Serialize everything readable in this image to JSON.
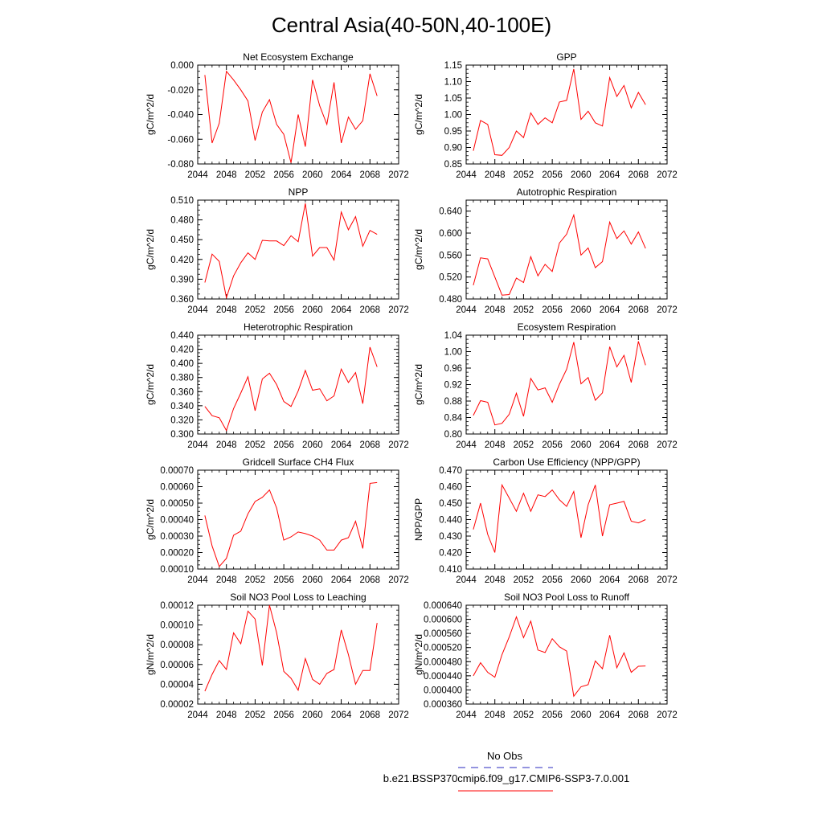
{
  "title": "Central Asia(40-50N,40-100E)",
  "legend": {
    "obs_label": "No Obs",
    "obs_color": "#5555cc",
    "model_label": "b.e21.BSSP370cmip6.f09_g17.CMIP6-SSP3-7.0.001",
    "model_color": "#ff0000"
  },
  "chart_data": [
    {
      "type": "line",
      "title": "Net Ecosystem Exchange",
      "ylabel": "gC/m^2/d",
      "xlim": [
        2044,
        2072
      ],
      "xticks": [
        "2044",
        "2048",
        "2052",
        "2056",
        "2060",
        "2064",
        "2068",
        "2072"
      ],
      "ylim": [
        -0.08,
        0.0
      ],
      "yticks": [
        "-0.080",
        "-0.060",
        "-0.040",
        "-0.020",
        "0.000"
      ],
      "x": [
        2045,
        2046,
        2047,
        2048,
        2049,
        2050,
        2051,
        2052,
        2053,
        2054,
        2055,
        2056,
        2057,
        2058,
        2059,
        2060,
        2061,
        2062,
        2063,
        2064,
        2065,
        2066,
        2067,
        2068,
        2069
      ],
      "y": [
        -0.008,
        -0.063,
        -0.047,
        -0.005,
        -0.012,
        -0.02,
        -0.029,
        -0.061,
        -0.038,
        -0.028,
        -0.048,
        -0.056,
        -0.079,
        -0.04,
        -0.066,
        -0.012,
        -0.033,
        -0.048,
        -0.014,
        -0.063,
        -0.042,
        -0.052,
        -0.045,
        -0.007,
        -0.025
      ]
    },
    {
      "type": "line",
      "title": "GPP",
      "ylabel": "gC/m^2/d",
      "xlim": [
        2044,
        2072
      ],
      "xticks": [
        "2044",
        "2048",
        "2052",
        "2056",
        "2060",
        "2064",
        "2068",
        "2072"
      ],
      "ylim": [
        0.85,
        1.15
      ],
      "yticks": [
        "0.85",
        "0.90",
        "0.95",
        "1.00",
        "1.05",
        "1.10",
        "1.15"
      ],
      "x": [
        2045,
        2046,
        2047,
        2048,
        2049,
        2050,
        2051,
        2052,
        2053,
        2054,
        2055,
        2056,
        2057,
        2058,
        2059,
        2060,
        2061,
        2062,
        2063,
        2064,
        2065,
        2066,
        2067,
        2068,
        2069
      ],
      "y": [
        0.89,
        0.982,
        0.97,
        0.878,
        0.876,
        0.9,
        0.95,
        0.93,
        1.005,
        0.97,
        0.99,
        0.975,
        1.038,
        1.043,
        1.138,
        0.985,
        1.01,
        0.975,
        0.965,
        1.112,
        1.055,
        1.088,
        1.02,
        1.067,
        1.03
      ]
    },
    {
      "type": "line",
      "title": "NPP",
      "ylabel": "gC/m^2/d",
      "xlim": [
        2044,
        2072
      ],
      "xticks": [
        "2044",
        "2048",
        "2052",
        "2056",
        "2060",
        "2064",
        "2068",
        "2072"
      ],
      "ylim": [
        0.36,
        0.51
      ],
      "yticks": [
        "0.360",
        "0.390",
        "0.420",
        "0.450",
        "0.480",
        "0.510"
      ],
      "x": [
        2045,
        2046,
        2047,
        2048,
        2049,
        2050,
        2051,
        2052,
        2053,
        2054,
        2055,
        2056,
        2057,
        2058,
        2059,
        2060,
        2061,
        2062,
        2063,
        2064,
        2065,
        2066,
        2067,
        2068,
        2069
      ],
      "y": [
        0.385,
        0.428,
        0.417,
        0.362,
        0.395,
        0.415,
        0.43,
        0.42,
        0.449,
        0.448,
        0.448,
        0.441,
        0.456,
        0.447,
        0.505,
        0.425,
        0.438,
        0.438,
        0.419,
        0.492,
        0.465,
        0.485,
        0.44,
        0.464,
        0.458
      ]
    },
    {
      "type": "line",
      "title": "Autotrophic Respiration",
      "ylabel": "gC/m^2/d",
      "xlim": [
        2044,
        2072
      ],
      "xticks": [
        "2044",
        "2048",
        "2052",
        "2056",
        "2060",
        "2064",
        "2068",
        "2072"
      ],
      "ylim": [
        0.48,
        0.66
      ],
      "yticks": [
        "0.480",
        "0.520",
        "0.560",
        "0.600",
        "0.640"
      ],
      "x": [
        2045,
        2046,
        2047,
        2048,
        2049,
        2050,
        2051,
        2052,
        2053,
        2054,
        2055,
        2056,
        2057,
        2058,
        2059,
        2060,
        2061,
        2062,
        2063,
        2064,
        2065,
        2066,
        2067,
        2068,
        2069
      ],
      "y": [
        0.505,
        0.555,
        0.553,
        0.52,
        0.487,
        0.488,
        0.518,
        0.51,
        0.557,
        0.522,
        0.543,
        0.53,
        0.582,
        0.598,
        0.633,
        0.56,
        0.573,
        0.537,
        0.548,
        0.62,
        0.59,
        0.604,
        0.58,
        0.602,
        0.572
      ]
    },
    {
      "type": "line",
      "title": "Heterotrophic Respiration",
      "ylabel": "gC/m^2/d",
      "xlim": [
        2044,
        2072
      ],
      "xticks": [
        "2044",
        "2048",
        "2052",
        "2056",
        "2060",
        "2064",
        "2068",
        "2072"
      ],
      "ylim": [
        0.3,
        0.44
      ],
      "yticks": [
        "0.300",
        "0.320",
        "0.340",
        "0.360",
        "0.380",
        "0.400",
        "0.420",
        "0.440"
      ],
      "x": [
        2045,
        2046,
        2047,
        2048,
        2049,
        2050,
        2051,
        2052,
        2053,
        2054,
        2055,
        2056,
        2057,
        2058,
        2059,
        2060,
        2061,
        2062,
        2063,
        2064,
        2065,
        2066,
        2067,
        2068,
        2069
      ],
      "y": [
        0.339,
        0.326,
        0.323,
        0.305,
        0.336,
        0.358,
        0.381,
        0.333,
        0.378,
        0.386,
        0.37,
        0.346,
        0.339,
        0.361,
        0.39,
        0.362,
        0.364,
        0.347,
        0.354,
        0.392,
        0.373,
        0.387,
        0.343,
        0.423,
        0.395
      ]
    },
    {
      "type": "line",
      "title": "Ecosystem Respiration",
      "ylabel": "gC/m^2/d",
      "xlim": [
        2044,
        2072
      ],
      "xticks": [
        "2044",
        "2048",
        "2052",
        "2056",
        "2060",
        "2064",
        "2068",
        "2072"
      ],
      "ylim": [
        0.8,
        1.04
      ],
      "yticks": [
        "0.80",
        "0.84",
        "0.88",
        "0.92",
        "0.96",
        "1.00",
        "1.04"
      ],
      "x": [
        2045,
        2046,
        2047,
        2048,
        2049,
        2050,
        2051,
        2052,
        2053,
        2054,
        2055,
        2056,
        2057,
        2058,
        2059,
        2060,
        2061,
        2062,
        2063,
        2064,
        2065,
        2066,
        2067,
        2068,
        2069
      ],
      "y": [
        0.845,
        0.881,
        0.877,
        0.822,
        0.826,
        0.848,
        0.899,
        0.843,
        0.935,
        0.907,
        0.912,
        0.877,
        0.921,
        0.957,
        1.023,
        0.922,
        0.937,
        0.882,
        0.9,
        1.012,
        0.963,
        0.991,
        0.925,
        1.025,
        0.967
      ]
    },
    {
      "type": "line",
      "title": "Gridcell Surface CH4 Flux",
      "ylabel": "gC/m^2/d",
      "xlim": [
        2044,
        2072
      ],
      "xticks": [
        "2044",
        "2048",
        "2052",
        "2056",
        "2060",
        "2064",
        "2068",
        "2072"
      ],
      "ylim": [
        0.0001,
        0.0007
      ],
      "yticks": [
        "0.00010",
        "0.00020",
        "0.00030",
        "0.00040",
        "0.00050",
        "0.00060",
        "0.00070"
      ],
      "x": [
        2045,
        2046,
        2047,
        2048,
        2049,
        2050,
        2051,
        2052,
        2053,
        2054,
        2055,
        2056,
        2057,
        2058,
        2059,
        2060,
        2061,
        2062,
        2063,
        2064,
        2065,
        2066,
        2067,
        2068,
        2069
      ],
      "y": [
        0.000425,
        0.00024,
        0.000115,
        0.000165,
        0.000305,
        0.00033,
        0.000435,
        0.00051,
        0.000535,
        0.00058,
        0.00047,
        0.000275,
        0.000295,
        0.000325,
        0.000315,
        0.0003,
        0.000275,
        0.000215,
        0.000215,
        0.000275,
        0.00029,
        0.00039,
        0.000225,
        0.00062,
        0.000625
      ]
    },
    {
      "type": "line",
      "title": "Carbon Use Efficiency (NPP/GPP)",
      "ylabel": "NPP/GPP",
      "xlim": [
        2044,
        2072
      ],
      "xticks": [
        "2044",
        "2048",
        "2052",
        "2056",
        "2060",
        "2064",
        "2068",
        "2072"
      ],
      "ylim": [
        0.41,
        0.47
      ],
      "yticks": [
        "0.410",
        "0.420",
        "0.430",
        "0.440",
        "0.450",
        "0.460",
        "0.470"
      ],
      "x": [
        2045,
        2046,
        2047,
        2048,
        2049,
        2050,
        2051,
        2052,
        2053,
        2054,
        2055,
        2056,
        2057,
        2058,
        2059,
        2060,
        2061,
        2062,
        2063,
        2064,
        2065,
        2066,
        2067,
        2068,
        2069
      ],
      "y": [
        0.434,
        0.45,
        0.431,
        0.42,
        0.461,
        0.453,
        0.445,
        0.456,
        0.445,
        0.455,
        0.454,
        0.458,
        0.452,
        0.448,
        0.457,
        0.429,
        0.449,
        0.461,
        0.43,
        0.449,
        0.45,
        0.451,
        0.439,
        0.438,
        0.44
      ]
    },
    {
      "type": "line",
      "title": "Soil NO3 Pool Loss to Leaching",
      "ylabel": "gN/m^2/d",
      "xlim": [
        2044,
        2072
      ],
      "xticks": [
        "2044",
        "2048",
        "2052",
        "2056",
        "2060",
        "2064",
        "2068",
        "2072"
      ],
      "ylim": [
        2e-05,
        0.00012
      ],
      "yticks": [
        "0.00002",
        "0.00004",
        "0.00006",
        "0.00008",
        "0.00010",
        "0.00012"
      ],
      "x": [
        2045,
        2046,
        2047,
        2048,
        2049,
        2050,
        2051,
        2052,
        2053,
        2054,
        2055,
        2056,
        2057,
        2058,
        2059,
        2060,
        2061,
        2062,
        2063,
        2064,
        2065,
        2066,
        2067,
        2068,
        2069
      ],
      "y": [
        3.3e-05,
        5e-05,
        6.4e-05,
        5.5e-05,
        9.2e-05,
        8.1e-05,
        0.000114,
        0.000106,
        5.9e-05,
        0.00012,
        9.2e-05,
        5.3e-05,
        4.6e-05,
        3.4e-05,
        6.6e-05,
        4.5e-05,
        4e-05,
        5.1e-05,
        5.5e-05,
        9.5e-05,
        7e-05,
        4e-05,
        5.4e-05,
        5.4e-05,
        0.000102
      ]
    },
    {
      "type": "line",
      "title": "Soil NO3 Pool Loss to Runoff",
      "ylabel": "gN/m^2/d",
      "xlim": [
        2044,
        2072
      ],
      "xticks": [
        "2044",
        "2048",
        "2052",
        "2056",
        "2060",
        "2064",
        "2068",
        "2072"
      ],
      "ylim": [
        0.00036,
        0.00064
      ],
      "yticks": [
        "0.000360",
        "0.000400",
        "0.000440",
        "0.000480",
        "0.000520",
        "0.000560",
        "0.000600",
        "0.000640"
      ],
      "x": [
        2045,
        2046,
        2047,
        2048,
        2049,
        2050,
        2051,
        2052,
        2053,
        2054,
        2055,
        2056,
        2057,
        2058,
        2059,
        2060,
        2061,
        2062,
        2063,
        2064,
        2065,
        2066,
        2067,
        2068,
        2069
      ],
      "y": [
        0.00044,
        0.000477,
        0.00045,
        0.000436,
        0.0005,
        0.00055,
        0.000607,
        0.000548,
        0.000595,
        0.000513,
        0.000506,
        0.000545,
        0.000522,
        0.00051,
        0.000382,
        0.000409,
        0.000415,
        0.000482,
        0.00046,
        0.000555,
        0.000463,
        0.000505,
        0.00045,
        0.000467,
        0.000468
      ]
    }
  ]
}
